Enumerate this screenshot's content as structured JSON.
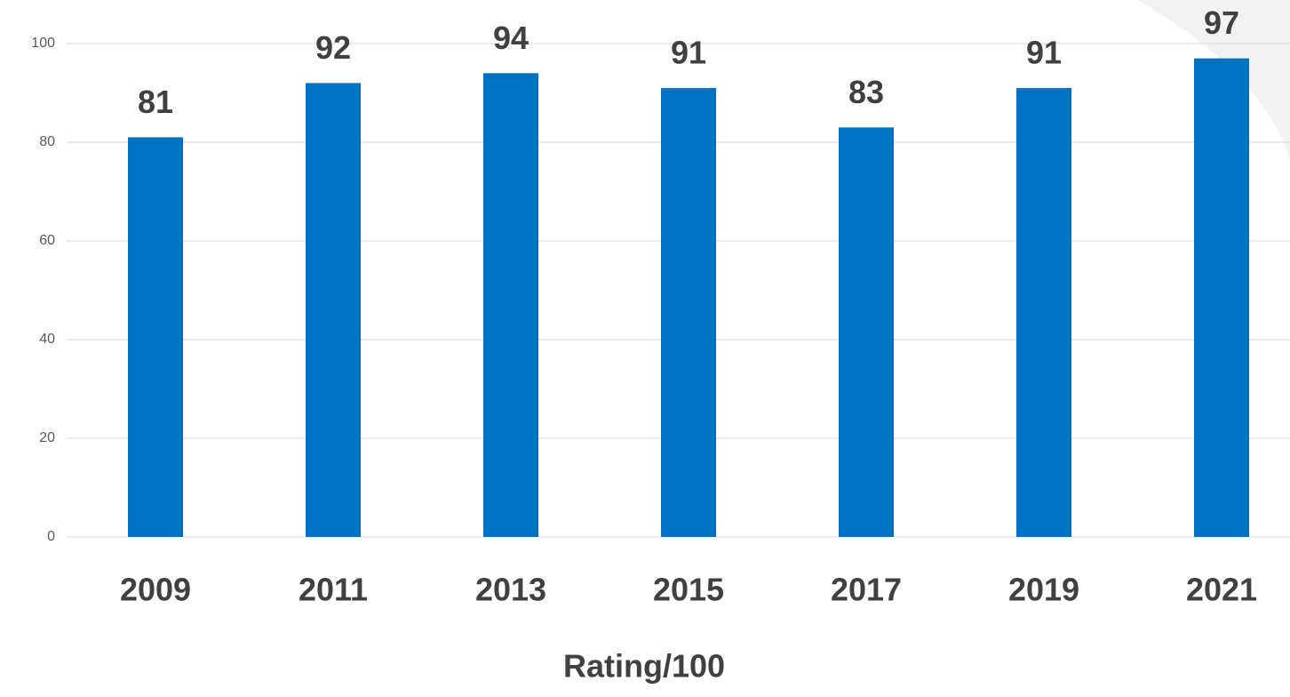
{
  "chart_data": {
    "type": "bar",
    "categories": [
      "2009",
      "2011",
      "2013",
      "2015",
      "2017",
      "2019",
      "2021"
    ],
    "values": [
      81,
      92,
      94,
      91,
      83,
      91,
      97
    ],
    "color": "#0070c0",
    "xlabel": "Rating/100",
    "ylim": [
      0,
      100
    ],
    "yticks": [
      0,
      20,
      40,
      60,
      80,
      100
    ],
    "grid": true
  }
}
